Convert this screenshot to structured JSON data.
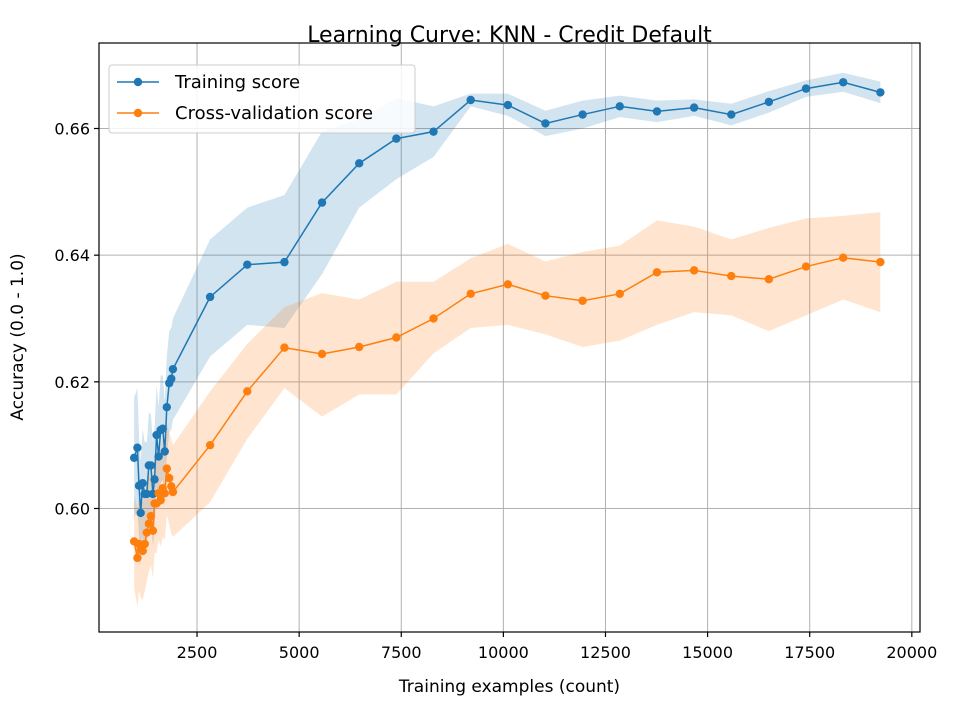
{
  "chart_data": {
    "type": "line",
    "title": "Learning Curve: KNN - Credit Default",
    "xlabel": "Training examples (count)",
    "ylabel": "Accuracy (0.0 - 1.0)",
    "xlim": [
      100,
      20200
    ],
    "ylim": [
      0.5805,
      0.6735
    ],
    "xticks": [
      2500,
      5000,
      7500,
      10000,
      12500,
      15000,
      17500,
      20000
    ],
    "yticks": [
      0.6,
      0.62,
      0.64,
      0.66
    ],
    "xtick_labels": [
      "2500",
      "5000",
      "7500",
      "10000",
      "12500",
      "15000",
      "17500",
      "20000"
    ],
    "ytick_labels": [
      "0.60",
      "0.62",
      "0.64",
      "0.66"
    ],
    "grid": true,
    "legend": "top-left",
    "x": [
      960,
      1040,
      1080,
      1120,
      1170,
      1220,
      1270,
      1320,
      1370,
      1420,
      1460,
      1510,
      1560,
      1610,
      1660,
      1710,
      1760,
      1820,
      1870,
      1910,
      2820,
      3730,
      4640,
      5560,
      6470,
      7380,
      8290,
      9200,
      10110,
      11030,
      11940,
      12850,
      13760,
      14670,
      15580,
      16500,
      17410,
      18320,
      19230
    ],
    "series": [
      {
        "name": "Training score",
        "color": "#1f77b4",
        "values": [
          0.608,
          0.6096,
          0.6036,
          0.5993,
          0.604,
          0.6023,
          0.6023,
          0.6068,
          0.6068,
          0.6023,
          0.6046,
          0.6116,
          0.6082,
          0.6124,
          0.6126,
          0.609,
          0.616,
          0.6198,
          0.6205,
          0.622,
          0.6334,
          0.6385,
          0.6389,
          0.6483,
          0.6545,
          0.6584,
          0.6595,
          0.6645,
          0.6637,
          0.6608,
          0.6622,
          0.6635,
          0.6627,
          0.6633,
          0.6622,
          0.6642,
          0.6663,
          0.6673,
          0.6657
        ],
        "lower": [
          0.5985,
          0.6,
          0.5955,
          0.591,
          0.5955,
          0.594,
          0.594,
          0.5985,
          0.5985,
          0.594,
          0.5965,
          0.6035,
          0.6,
          0.604,
          0.6045,
          0.601,
          0.608,
          0.612,
          0.6125,
          0.614,
          0.624,
          0.629,
          0.6285,
          0.637,
          0.6475,
          0.652,
          0.6555,
          0.6635,
          0.662,
          0.6588,
          0.66,
          0.6618,
          0.661,
          0.662,
          0.6605,
          0.6625,
          0.665,
          0.6658,
          0.664
        ],
        "upper": [
          0.6175,
          0.619,
          0.6115,
          0.6075,
          0.6125,
          0.6105,
          0.6105,
          0.615,
          0.615,
          0.6105,
          0.6125,
          0.6195,
          0.616,
          0.621,
          0.621,
          0.617,
          0.624,
          0.628,
          0.6285,
          0.63,
          0.6425,
          0.6475,
          0.6495,
          0.6595,
          0.6615,
          0.6648,
          0.6635,
          0.6655,
          0.6655,
          0.6628,
          0.6644,
          0.6652,
          0.6644,
          0.6646,
          0.6639,
          0.6659,
          0.6676,
          0.6688,
          0.6674
        ]
      },
      {
        "name": "Cross-validation score",
        "color": "#ff7f0e",
        "values": [
          0.5948,
          0.5922,
          0.5944,
          0.5935,
          0.5933,
          0.5944,
          0.5962,
          0.5976,
          0.5988,
          0.5965,
          0.6008,
          0.6008,
          0.6024,
          0.6013,
          0.6032,
          0.6024,
          0.6063,
          0.6048,
          0.6035,
          0.6026,
          0.61,
          0.6185,
          0.6254,
          0.6244,
          0.6255,
          0.627,
          0.63,
          0.6339,
          0.6354,
          0.6336,
          0.6328,
          0.6339,
          0.6373,
          0.6376,
          0.6367,
          0.6362,
          0.6382,
          0.6396,
          0.6389
        ],
        "lower": [
          0.5875,
          0.5845,
          0.587,
          0.586,
          0.5855,
          0.587,
          0.5885,
          0.59,
          0.591,
          0.589,
          0.593,
          0.593,
          0.595,
          0.594,
          0.5955,
          0.595,
          0.599,
          0.5975,
          0.596,
          0.5955,
          0.601,
          0.611,
          0.619,
          0.6145,
          0.618,
          0.618,
          0.6245,
          0.6285,
          0.629,
          0.6275,
          0.6255,
          0.6265,
          0.629,
          0.631,
          0.6305,
          0.628,
          0.6305,
          0.633,
          0.631
        ],
        "upper": [
          0.602,
          0.6,
          0.602,
          0.601,
          0.601,
          0.602,
          0.604,
          0.605,
          0.6065,
          0.604,
          0.6085,
          0.6085,
          0.61,
          0.609,
          0.611,
          0.61,
          0.6135,
          0.612,
          0.611,
          0.61,
          0.6185,
          0.626,
          0.6318,
          0.634,
          0.633,
          0.6358,
          0.6358,
          0.6395,
          0.6418,
          0.639,
          0.6405,
          0.6415,
          0.6455,
          0.6445,
          0.6425,
          0.6443,
          0.6458,
          0.6462,
          0.6468
        ]
      }
    ]
  }
}
